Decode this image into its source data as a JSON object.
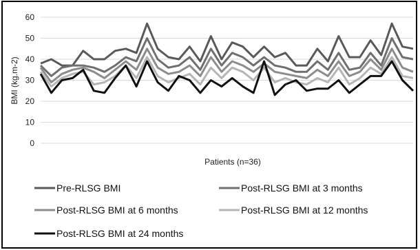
{
  "chart_data": {
    "type": "line",
    "xlabel": "Patients (n=36)",
    "ylabel": "BMI (kg.m-2)",
    "ylim": [
      0,
      60
    ],
    "yticks": [
      0,
      10,
      20,
      30,
      40,
      50,
      60
    ],
    "grid": true,
    "legend_position": "bottom",
    "x": [
      1,
      2,
      3,
      4,
      5,
      6,
      7,
      8,
      9,
      10,
      11,
      12,
      13,
      14,
      15,
      16,
      17,
      18,
      19,
      20,
      21,
      22,
      23,
      24,
      25,
      26,
      27,
      28,
      29,
      30,
      31,
      32,
      33,
      34,
      35,
      36
    ],
    "series": [
      {
        "name": "Pre-RLSG BMI",
        "color": "#595959",
        "values": [
          38,
          40,
          37,
          37,
          44,
          40,
          40,
          44,
          45,
          43,
          57,
          45,
          41,
          40,
          46,
          39,
          51,
          40,
          48,
          46,
          41,
          46,
          41,
          43,
          37,
          37,
          45,
          39,
          51,
          41,
          41,
          49,
          42,
          57,
          46,
          45
        ]
      },
      {
        "name": "Post-RLSG BMI at 3 months",
        "color": "#6f6f6f",
        "values": [
          37,
          32,
          36,
          37,
          37,
          36,
          34,
          37,
          41,
          39,
          50,
          40,
          36,
          37,
          41,
          35,
          45,
          37,
          43,
          41,
          37,
          41,
          37,
          36,
          34,
          34,
          39,
          35,
          43,
          35,
          36,
          43,
          37,
          50,
          41,
          40
        ]
      },
      {
        "name": "Post-RLSG BMI at 6 months",
        "color": "#8c8c8c",
        "values": [
          36,
          29,
          33,
          35,
          36,
          34,
          31,
          35,
          39,
          35,
          45,
          36,
          33,
          34,
          37,
          32,
          41,
          34,
          39,
          37,
          34,
          38,
          34,
          33,
          32,
          31,
          35,
          32,
          39,
          32,
          34,
          40,
          35,
          45,
          36,
          34
        ]
      },
      {
        "name": "Post-RLSG BMI at 12 months",
        "color": "#b5b5b5",
        "values": [
          34,
          27,
          31,
          33,
          34,
          28,
          29,
          32,
          37,
          31,
          41,
          32,
          29,
          31,
          33,
          28,
          36,
          31,
          36,
          34,
          30,
          36,
          29,
          31,
          29,
          28,
          31,
          29,
          36,
          28,
          31,
          36,
          33,
          41,
          32,
          31
        ]
      },
      {
        "name": "Post-RLSG BMI at 24 months",
        "color": "#111111",
        "values": [
          33,
          24,
          30,
          31,
          35,
          25,
          24,
          31,
          37,
          27,
          39,
          29,
          25,
          32,
          30,
          24,
          30,
          27,
          31,
          27,
          24,
          39,
          23,
          28,
          30,
          25,
          26,
          26,
          30,
          24,
          28,
          32,
          32,
          39,
          30,
          25
        ]
      }
    ]
  }
}
